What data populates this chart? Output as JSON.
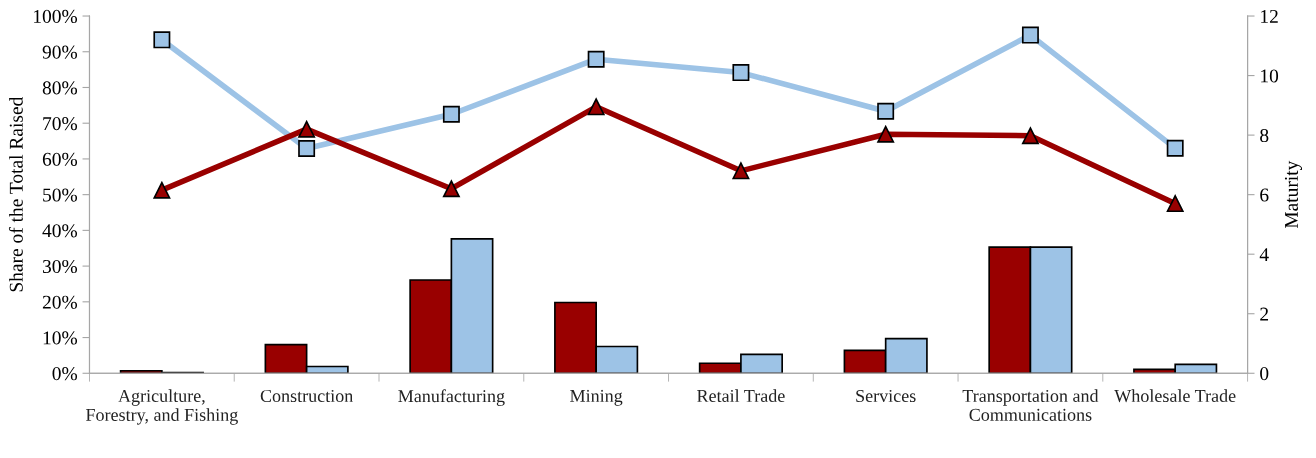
{
  "chart_data": {
    "type": "bar",
    "ylabel": "Share of the Total Raised",
    "y2label": "Maturity",
    "categories": [
      "Agriculture, Forestry, and Fishing",
      "Construction",
      "Manufacturing",
      "Mining",
      "Retail Trade",
      "Services",
      "Transportation and Communications",
      "Wholesale Trade"
    ],
    "series": [
      {
        "color": "#990000",
        "values": [
          0.7,
          8.0,
          26.1,
          19.8,
          2.8,
          6.4,
          35.3,
          1.1
        ]
      },
      {
        "color": "#9dc3e6",
        "values": [
          0.2,
          1.9,
          37.6,
          7.5,
          5.3,
          9.7,
          35.3,
          2.5
        ]
      },
      {
        "type": "line",
        "axis": "y2",
        "color": "#9dc3e6",
        "marker": "square",
        "values": [
          11.2,
          7.55,
          8.7,
          10.55,
          10.1,
          8.8,
          11.36,
          7.56
        ]
      },
      {
        "type": "line",
        "axis": "y2",
        "color": "#990000",
        "marker": "triangle",
        "values": [
          6.15,
          8.2,
          6.2,
          8.95,
          6.8,
          8.03,
          7.98,
          5.7
        ]
      }
    ],
    "ylim": [
      0,
      100
    ],
    "yticks": [
      {
        "value": 0,
        "label": "0%"
      },
      {
        "value": 10,
        "label": "10%"
      },
      {
        "value": 20,
        "label": "20%"
      },
      {
        "value": 30,
        "label": "30%"
      },
      {
        "value": 40,
        "label": "40%"
      },
      {
        "value": 50,
        "label": "50%"
      },
      {
        "value": 60,
        "label": "60%"
      },
      {
        "value": 70,
        "label": "70%"
      },
      {
        "value": 80,
        "label": "80%"
      },
      {
        "value": 90,
        "label": "90%"
      },
      {
        "value": 100,
        "label": "100%"
      }
    ],
    "y2lim": [
      0,
      12
    ],
    "y2ticks": [
      0,
      2,
      4,
      6,
      8,
      10,
      12
    ],
    "grid": false,
    "legend": false
  }
}
